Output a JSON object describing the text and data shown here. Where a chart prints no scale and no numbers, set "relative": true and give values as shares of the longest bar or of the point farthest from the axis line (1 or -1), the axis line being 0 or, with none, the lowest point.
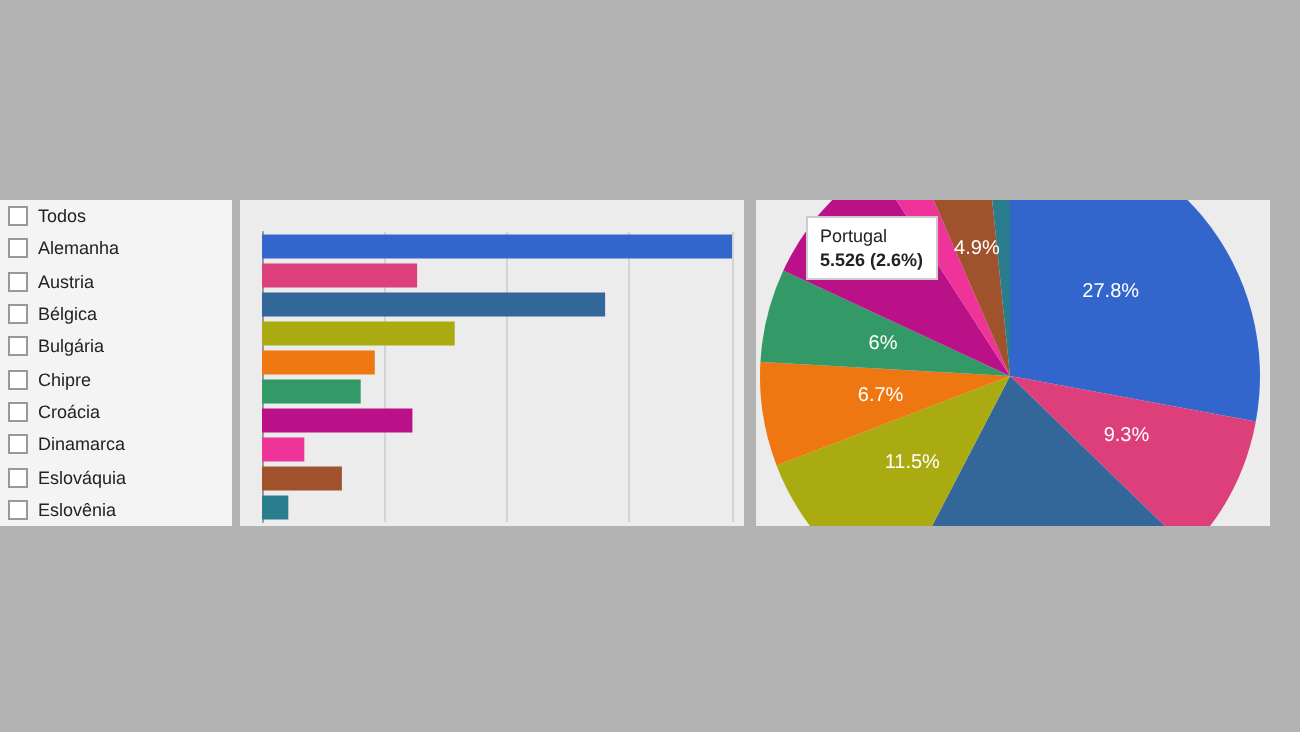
{
  "chart_data": [
    {
      "type": "other",
      "annotations": [
        "Todos",
        "Alemanha",
        "Austria",
        "Bélgica",
        "Bulgária",
        "Chipre",
        "Croácia",
        "Dinamarca",
        "Eslováquia",
        "Eslovênia"
      ]
    },
    {
      "type": "bar",
      "orientation": "horizontal",
      "relative": true,
      "grid": "x",
      "categories": [
        null,
        null,
        null,
        null,
        null,
        null,
        null,
        null,
        null,
        null
      ],
      "values": [
        1,
        0.33,
        0.73,
        0.41,
        0.24,
        0.21,
        0.32,
        0.09,
        0.17,
        0.056
      ],
      "colors": [
        "#3366cc",
        "#dc3f7a",
        "#336699",
        "#aaaa11",
        "#ee7711",
        "#339966",
        "#bb1188",
        "#ee3399",
        "#a0522d",
        "#2a7d8c"
      ]
    },
    {
      "type": "pie",
      "categories": [
        null,
        null,
        null,
        null,
        null,
        null,
        null,
        null,
        null,
        null
      ],
      "values": [
        27.8,
        9.3,
        20.3,
        11.5,
        6.7,
        6,
        8.9,
        2.6,
        4.9,
        1.6
      ],
      "value_labels": [
        "27.8%",
        "9.3%",
        null,
        "11.5%",
        "6.7%",
        "6%",
        null,
        null,
        "4.9%",
        null
      ],
      "colors": [
        "#3366cc",
        "#dc3f7a",
        "#336699",
        "#aaaa11",
        "#ee7711",
        "#339966",
        "#bb1188",
        "#ee3399",
        "#a0522d",
        "#2a7d8c"
      ],
      "annotations": [
        "Portugal",
        "5.526 (2.6%)"
      ]
    }
  ]
}
